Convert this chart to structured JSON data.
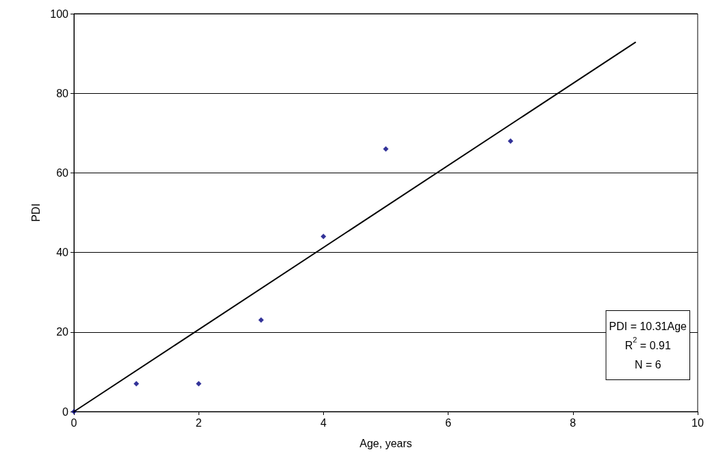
{
  "chart_data": {
    "type": "scatter",
    "xlabel": "Age, years",
    "ylabel": "PDI",
    "xlim": [
      0,
      10
    ],
    "xticks": [
      0,
      2,
      4,
      6,
      8,
      10
    ],
    "ylim": [
      0,
      100
    ],
    "yticks": [
      0,
      20,
      40,
      60,
      80,
      100
    ],
    "grid": "y",
    "series": [
      {
        "type": "scatter",
        "color": "#000080",
        "marker": "diamond",
        "x": [
          0,
          1,
          2,
          3,
          4,
          5,
          7
        ],
        "values": [
          0,
          7,
          7,
          23,
          44,
          66,
          68
        ]
      },
      {
        "type": "line",
        "color": "#000000",
        "marker": "none",
        "line_style": "solid",
        "x": [
          0,
          9
        ],
        "values": [
          0,
          92.8
        ]
      }
    ],
    "annotations": [
      "PDI = 10.31Age",
      "R$^{2}$ = 0.91",
      "N = 6"
    ]
  }
}
